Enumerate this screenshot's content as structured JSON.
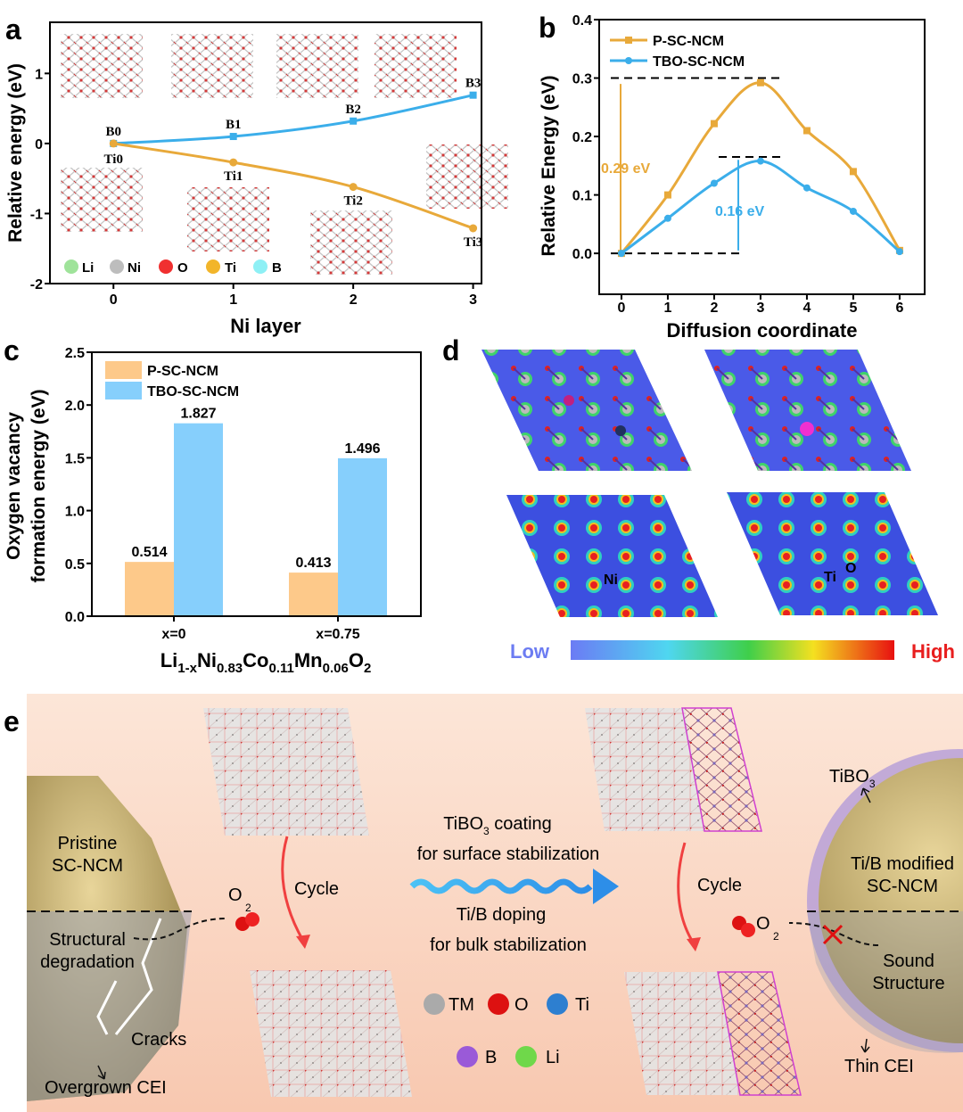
{
  "panel_labels": {
    "a": "a",
    "b": "b",
    "c": "c",
    "d": "d",
    "e": "e"
  },
  "colors": {
    "orange": "#E8A93A",
    "blue": "#3BAEEA",
    "bar_orange": "#FDC98A",
    "bar_blue": "#86CFFC",
    "high": "#E81E1E",
    "low": "#6C7CF2"
  },
  "chart_data": [
    {
      "id": "a",
      "type": "line",
      "xlabel": "Ni layer",
      "ylabel": "Relative energy (eV)",
      "xlim": [
        -0.53,
        3.07
      ],
      "ylim": [
        -2,
        1.73
      ],
      "xticks": [
        "0",
        "1",
        "2",
        "3"
      ],
      "yticks": [
        "1",
        "0",
        "-1",
        "-2"
      ],
      "x": [
        0,
        1,
        2,
        3
      ],
      "series": [
        {
          "name": "B",
          "values": [
            0,
            0.1,
            0.32,
            0.69
          ],
          "point_labels": [
            "B0",
            "B1",
            "B2",
            "B3"
          ]
        },
        {
          "name": "Ti",
          "values": [
            0,
            -0.27,
            -0.62,
            -1.21
          ],
          "point_labels": [
            "Ti0",
            "Ti1",
            "Ti2",
            "Ti3"
          ]
        }
      ],
      "legend": [
        "Li",
        "Ni",
        "O",
        "Ti",
        "B"
      ]
    },
    {
      "id": "b",
      "type": "line",
      "xlabel": "Diffusion coordinate",
      "ylabel": "Relative Energy (eV)",
      "xlim": [
        -0.48,
        6.54
      ],
      "ylim": [
        -0.07,
        0.4
      ],
      "xticks": [
        "0",
        "1",
        "2",
        "3",
        "4",
        "5",
        "6"
      ],
      "yticks": [
        "0.0",
        "0.1",
        "0.2",
        "0.3",
        "0.4"
      ],
      "x": [
        0,
        1,
        2,
        3,
        4,
        5,
        6
      ],
      "series": [
        {
          "name": "P-SC-NCM",
          "values": [
            0,
            0.1,
            0.222,
            0.292,
            0.21,
            0.14,
            0.005
          ]
        },
        {
          "name": "TBO-SC-NCM",
          "values": [
            0,
            0.06,
            0.12,
            0.158,
            0.112,
            0.072,
            0.003
          ]
        }
      ],
      "annotations": [
        "0.29 eV",
        "0.16 eV"
      ],
      "legend_position": "top-left"
    },
    {
      "id": "c",
      "type": "bar",
      "ylabel_line1": "Oxygen vacancy",
      "ylabel_line2": "formation energy (eV)",
      "ylim": [
        0,
        2.5
      ],
      "yticks": [
        "0.0",
        "0.5",
        "1.0",
        "1.5",
        "2.0",
        "2.5"
      ],
      "categories": [
        "x=0",
        "x=0.75"
      ],
      "xlabel_parts": [
        "Li",
        "1-x",
        "Ni",
        "0.83",
        "Co",
        "0.11",
        "Mn",
        "0.06",
        "O",
        "2"
      ],
      "series": [
        {
          "name": "P-SC-NCM",
          "values": [
            0.514,
            0.413
          ],
          "labels": [
            "0.514",
            "0.413"
          ]
        },
        {
          "name": "TBO-SC-NCM",
          "values": [
            1.827,
            1.496
          ],
          "labels": [
            "1.827",
            "1.496"
          ]
        }
      ],
      "legend_position": "top-left"
    }
  ],
  "panel_d": {
    "ni_label": "Ni",
    "ti_label": "Ti",
    "o_label": "O",
    "low": "Low",
    "high": "High"
  },
  "panel_e": {
    "pristine": [
      "Pristine",
      "SC-NCM"
    ],
    "structural": [
      "Structural",
      "degradation"
    ],
    "cracks": "Cracks",
    "overgrown": "Overgrown CEI",
    "o2_left": "O",
    "o2_sub": "2",
    "cycle_left": "Cycle",
    "cycle_right": "Cycle",
    "coating_pre": "TiBO",
    "coating_sub": "3",
    "coating_post": " coating",
    "surface": "for surface stabilization",
    "doping": "Ti/B doping",
    "bulk": "for bulk stabilization",
    "tibo3": "TiBO",
    "tibo3_sub": "3",
    "modified": [
      "Ti/B modified",
      "SC-NCM"
    ],
    "sound": [
      "Sound",
      "Structure"
    ],
    "thin": "Thin CEI",
    "legend": [
      "TM",
      "O",
      "Ti",
      "B",
      "Li"
    ]
  }
}
